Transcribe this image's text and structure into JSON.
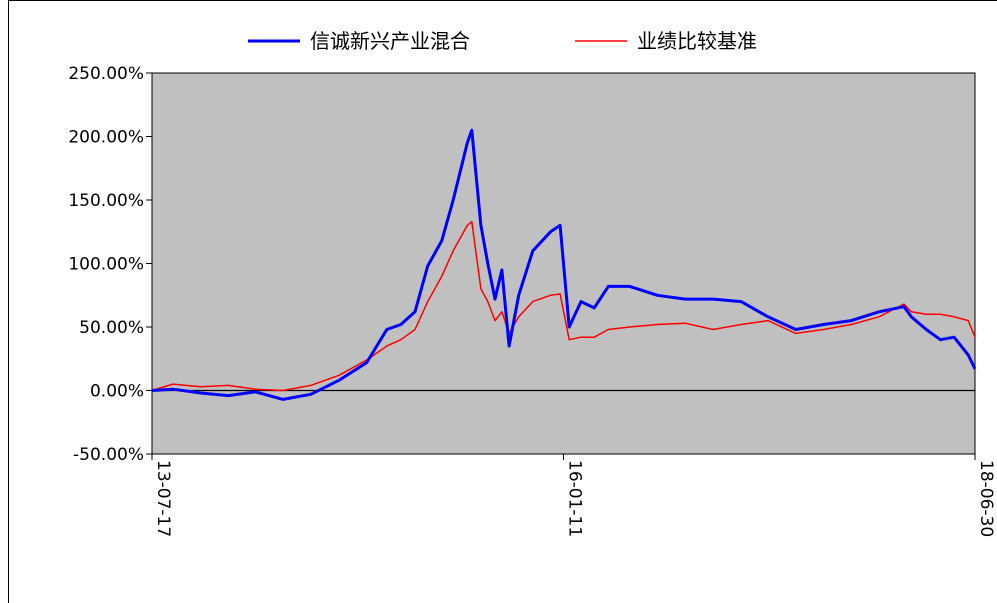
{
  "chart_data": {
    "type": "line",
    "title": "",
    "xlabel": "",
    "ylabel": "",
    "ylim": [
      -50,
      250
    ],
    "y_ticks": [
      {
        "value": 250,
        "label": "250.00%"
      },
      {
        "value": 200,
        "label": "200.00%"
      },
      {
        "value": 150,
        "label": "150.00%"
      },
      {
        "value": 100,
        "label": "100.00%"
      },
      {
        "value": 50,
        "label": "50.00%"
      },
      {
        "value": 0,
        "label": "0.00%"
      },
      {
        "value": -50,
        "label": "-50.00%"
      }
    ],
    "x_ticks": [
      "13-07-17",
      "16-01-11",
      "18-06-30"
    ],
    "xlim": [
      "2013-07-17",
      "2018-06-30"
    ],
    "legend_position": "top",
    "background_color": "#c0c0c0",
    "grid": false,
    "series": [
      {
        "name": "信诚新兴产业混合",
        "color": "#0000ff",
        "x": [
          "2013-07-17",
          "2013-09-01",
          "2013-11-01",
          "2014-01-01",
          "2014-03-01",
          "2014-05-01",
          "2014-07-01",
          "2014-09-01",
          "2014-11-01",
          "2014-12-15",
          "2015-01-15",
          "2015-02-15",
          "2015-03-15",
          "2015-04-15",
          "2015-05-10",
          "2015-06-10",
          "2015-06-20",
          "2015-07-10",
          "2015-07-25",
          "2015-08-10",
          "2015-08-25",
          "2015-09-10",
          "2015-10-01",
          "2015-11-01",
          "2015-12-10",
          "2015-12-31",
          "2016-01-20",
          "2016-02-15",
          "2016-03-15",
          "2016-04-15",
          "2016-06-01",
          "2016-08-01",
          "2016-10-01",
          "2016-12-01",
          "2017-02-01",
          "2017-04-01",
          "2017-06-01",
          "2017-08-01",
          "2017-10-01",
          "2017-12-01",
          "2018-01-25",
          "2018-02-10",
          "2018-03-15",
          "2018-04-15",
          "2018-05-15",
          "2018-06-15",
          "2018-06-30"
        ],
        "values": [
          0,
          1,
          -2,
          -4,
          -1,
          -7,
          -3,
          8,
          22,
          48,
          52,
          62,
          98,
          118,
          150,
          195,
          205,
          130,
          100,
          72,
          95,
          35,
          75,
          110,
          125,
          130,
          50,
          70,
          65,
          82,
          82,
          75,
          72,
          72,
          70,
          58,
          48,
          52,
          55,
          62,
          66,
          58,
          48,
          40,
          42,
          28,
          17
        ]
      },
      {
        "name": "业绩比较基准",
        "color": "#ff0000",
        "x": [
          "2013-07-17",
          "2013-09-01",
          "2013-11-01",
          "2014-01-01",
          "2014-03-01",
          "2014-05-01",
          "2014-07-01",
          "2014-09-01",
          "2014-11-01",
          "2014-12-15",
          "2015-01-15",
          "2015-02-15",
          "2015-03-15",
          "2015-04-15",
          "2015-05-10",
          "2015-06-10",
          "2015-06-20",
          "2015-07-10",
          "2015-07-25",
          "2015-08-10",
          "2015-08-25",
          "2015-09-10",
          "2015-10-01",
          "2015-11-01",
          "2015-12-10",
          "2015-12-31",
          "2016-01-20",
          "2016-02-15",
          "2016-03-15",
          "2016-04-15",
          "2016-06-01",
          "2016-08-01",
          "2016-10-01",
          "2016-12-01",
          "2017-02-01",
          "2017-04-01",
          "2017-06-01",
          "2017-08-01",
          "2017-10-01",
          "2017-12-01",
          "2018-01-25",
          "2018-02-10",
          "2018-03-15",
          "2018-04-15",
          "2018-05-15",
          "2018-06-15",
          "2018-06-30"
        ],
        "values": [
          0,
          5,
          3,
          4,
          1,
          0,
          4,
          12,
          24,
          35,
          40,
          48,
          70,
          90,
          110,
          130,
          133,
          80,
          70,
          55,
          62,
          45,
          58,
          70,
          75,
          76,
          40,
          42,
          42,
          48,
          50,
          52,
          53,
          48,
          52,
          55,
          45,
          48,
          52,
          58,
          68,
          62,
          60,
          60,
          58,
          55,
          42
        ]
      }
    ]
  }
}
